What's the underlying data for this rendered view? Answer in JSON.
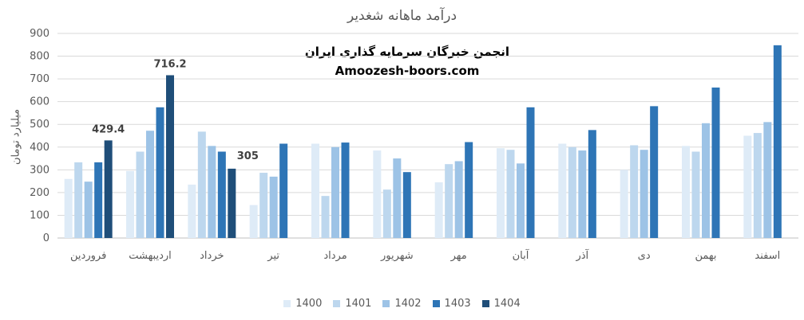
{
  "chart_data": {
    "type": "bar",
    "title": "درآمد ماهانه شغدیر",
    "ylabel": "میلیارد تومان",
    "xlabel": "",
    "ylim": [
      0,
      900
    ],
    "yticks": [
      0,
      100,
      200,
      300,
      400,
      500,
      600,
      700,
      800,
      900
    ],
    "grid": true,
    "legend_position": "bottom",
    "categories": [
      "فروردین",
      "اردیبهشت",
      "خرداد",
      "تیر",
      "مرداد",
      "شهریور",
      "مهر",
      "آبان",
      "آذر",
      "دی",
      "بهمن",
      "اسفند"
    ],
    "series": [
      {
        "name": "1400",
        "color": "#deebf7",
        "values": [
          260,
          295,
          235,
          145,
          415,
          385,
          245,
          395,
          415,
          300,
          405,
          450
        ]
      },
      {
        "name": "1401",
        "color": "#bdd7ee",
        "values": [
          333,
          380,
          468,
          287,
          185,
          213,
          325,
          388,
          400,
          408,
          380,
          462
        ]
      },
      {
        "name": "1402",
        "color": "#9dc3e6",
        "values": [
          248,
          472,
          405,
          270,
          400,
          350,
          338,
          328,
          385,
          388,
          505,
          510
        ]
      },
      {
        "name": "1403",
        "color": "#2e75b6",
        "values": [
          333,
          575,
          380,
          415,
          420,
          290,
          422,
          575,
          475,
          580,
          662,
          848
        ]
      },
      {
        "name": "1404",
        "color": "#1f4e79",
        "values": [
          429.4,
          716.2,
          305,
          null,
          null,
          null,
          null,
          null,
          null,
          null,
          null,
          null
        ]
      }
    ],
    "data_labels": [
      {
        "series": "1404",
        "category_index": 0,
        "text": "429.4"
      },
      {
        "series": "1404",
        "category_index": 1,
        "text": "716.2"
      },
      {
        "series": "1404",
        "category_index": 2,
        "text": "305"
      }
    ]
  },
  "watermark": {
    "line1": "انجمن خبرگان سرمایه گذاری ایران",
    "line2": "Amoozesh-boors.com"
  }
}
